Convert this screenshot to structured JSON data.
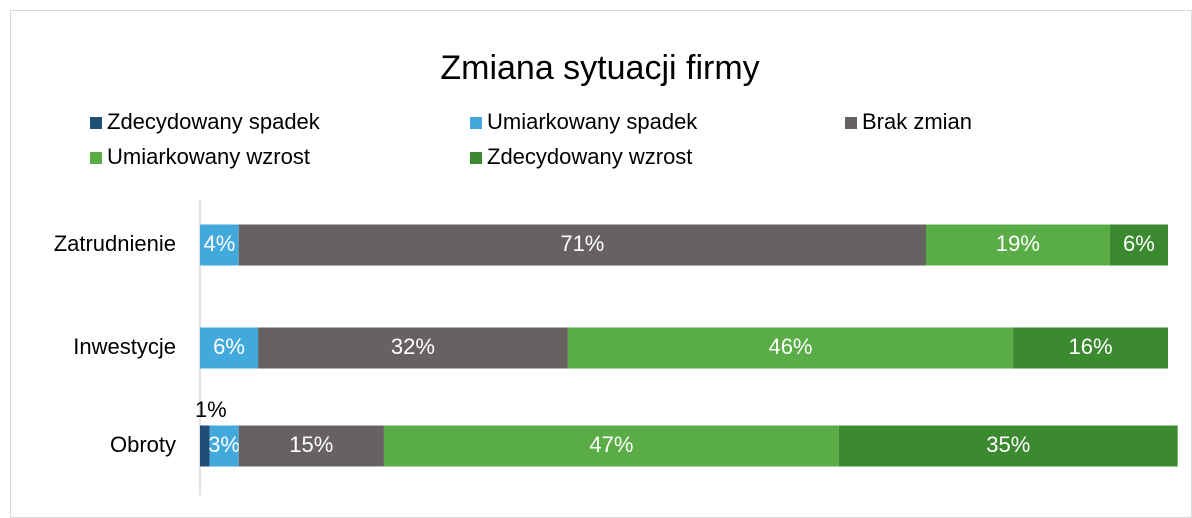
{
  "chart_data": {
    "type": "stacked-bar-horizontal",
    "title": "Zmiana sytuacji firmy",
    "categories": [
      "Zatrudnienie",
      "Inwestycje",
      "Obroty"
    ],
    "series": [
      {
        "name": "Zdecydowany spadek",
        "color": "#1f4e79",
        "values": [
          null,
          null,
          1
        ],
        "value_labels": [
          null,
          null,
          "1%"
        ]
      },
      {
        "name": "Umiarkowany spadek",
        "color": "#41a9dc",
        "values": [
          4,
          6,
          3
        ],
        "value_labels": [
          "4%",
          "6%",
          "3%"
        ]
      },
      {
        "name": "Brak zmian",
        "color": "#676262",
        "values": [
          71,
          32,
          15
        ],
        "value_labels": [
          "71%",
          "32%",
          "15%"
        ]
      },
      {
        "name": "Umiarkowany wzrost",
        "color": "#5aad46",
        "values": [
          19,
          46,
          47
        ],
        "value_labels": [
          "19%",
          "46%",
          "47%"
        ]
      },
      {
        "name": "Zdecydowany wzrost",
        "color": "#3b8a2f",
        "values": [
          6,
          16,
          35
        ],
        "value_labels": [
          "6%",
          "16%",
          "35%"
        ]
      }
    ],
    "xlim": [
      0,
      100
    ],
    "legend": "top"
  }
}
